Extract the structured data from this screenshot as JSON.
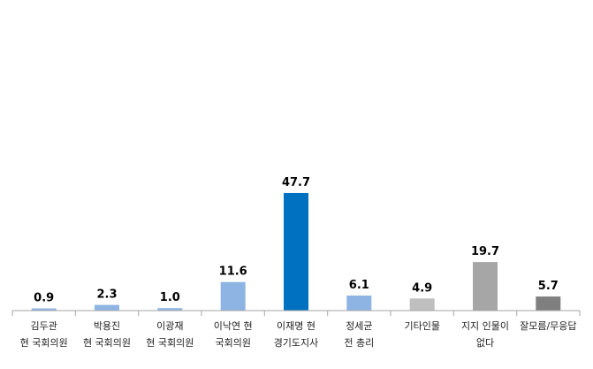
{
  "chart_data": {
    "type": "bar",
    "title": "",
    "xlabel": "",
    "ylabel": "",
    "ylim": [
      0,
      60
    ],
    "grid": false,
    "legend": "none",
    "categories": [
      [
        "김두관",
        "현 국회의원"
      ],
      [
        "박용진",
        "현 국회의원"
      ],
      [
        "이광재",
        "현 국회의원"
      ],
      [
        "이낙연 현",
        "국회의원"
      ],
      [
        "이재명 현",
        "경기도지사"
      ],
      [
        "정세균",
        "전 총리"
      ],
      [
        "기타인물"
      ],
      [
        "지지 인물이",
        "없다"
      ],
      [
        "잘모름/무응답"
      ]
    ],
    "values": [
      0.9,
      2.3,
      1.0,
      11.6,
      47.7,
      6.1,
      4.9,
      19.7,
      5.7
    ],
    "value_labels": [
      "0.9",
      "2.3",
      "1.0",
      "11.6",
      "47.7",
      "6.1",
      "4.9",
      "19.7",
      "5.7"
    ],
    "bar_colors": [
      "#8EB4E3",
      "#8EB4E3",
      "#8EB4E3",
      "#8EB4E3",
      "#0070C0",
      "#8EB4E3",
      "#BFBFBF",
      "#A6A6A6",
      "#7F7F7F"
    ]
  }
}
